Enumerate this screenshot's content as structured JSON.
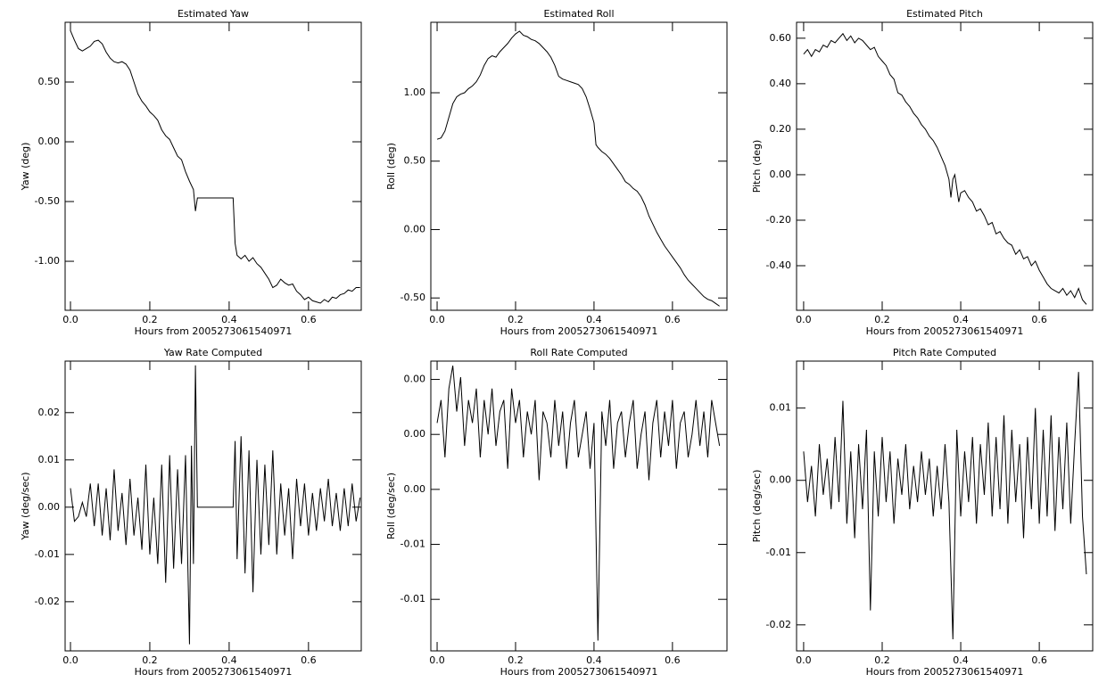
{
  "chart_data": [
    {
      "type": "line",
      "title": "Estimated Yaw",
      "x_label": "Hours from 2005273061540971",
      "y_label": "Yaw (deg)",
      "xlim": [
        -0.0135,
        0.733
      ],
      "ylim": [
        -1.41,
        1.0
      ],
      "xticks": [
        {
          "value": 0,
          "label": "0.0"
        },
        0.2,
        0.4,
        0.6
      ],
      "yticks": [
        {
          "value": 0.5,
          "label": "0.50"
        },
        {
          "value": 0,
          "label": "0.00"
        },
        {
          "value": -0.5,
          "label": "-0.50"
        },
        {
          "value": -1.0,
          "label": "-1.00"
        }
      ],
      "color": "#000000",
      "x": [
        0,
        0.01,
        0.02,
        0.03,
        0.04,
        0.05,
        0.06,
        0.07,
        0.08,
        0.09,
        0.1,
        0.11,
        0.12,
        0.13,
        0.14,
        0.15,
        0.16,
        0.17,
        0.18,
        0.19,
        0.2,
        0.21,
        0.22,
        0.23,
        0.24,
        0.25,
        0.26,
        0.27,
        0.28,
        0.29,
        0.3,
        0.31,
        0.315,
        0.32,
        0.41,
        0.415,
        0.42,
        0.43,
        0.44,
        0.45,
        0.46,
        0.47,
        0.48,
        0.49,
        0.5,
        0.51,
        0.52,
        0.53,
        0.54,
        0.55,
        0.56,
        0.57,
        0.58,
        0.59,
        0.6,
        0.61,
        0.62,
        0.63,
        0.64,
        0.65,
        0.66,
        0.67,
        0.68,
        0.69,
        0.7,
        0.71,
        0.72,
        0.73
      ],
      "values": [
        0.93,
        0.85,
        0.78,
        0.76,
        0.78,
        0.8,
        0.84,
        0.85,
        0.82,
        0.75,
        0.7,
        0.67,
        0.66,
        0.67,
        0.65,
        0.6,
        0.5,
        0.4,
        0.34,
        0.3,
        0.25,
        0.22,
        0.18,
        0.1,
        0.05,
        0.02,
        -0.05,
        -0.12,
        -0.15,
        -0.25,
        -0.33,
        -0.4,
        -0.58,
        -0.47,
        -0.47,
        -0.85,
        -0.95,
        -0.98,
        -0.95,
        -1.0,
        -0.97,
        -1.02,
        -1.05,
        -1.1,
        -1.15,
        -1.22,
        -1.2,
        -1.15,
        -1.18,
        -1.2,
        -1.19,
        -1.25,
        -1.28,
        -1.32,
        -1.3,
        -1.33,
        -1.34,
        -1.35,
        -1.32,
        -1.34,
        -1.3,
        -1.31,
        -1.28,
        -1.27,
        -1.24,
        -1.25,
        -1.22,
        -1.22
      ]
    },
    {
      "type": "line",
      "title": "Estimated Roll",
      "x_label": "Hours from 2005273061540971",
      "y_label": "Roll (deg)",
      "xlim": [
        -0.016,
        0.739
      ],
      "ylim": [
        -0.59,
        1.515
      ],
      "xticks": [
        {
          "value": 0,
          "label": "0.0"
        },
        0.2,
        0.4,
        0.6
      ],
      "yticks": [
        {
          "value": 1.0,
          "label": "1.00"
        },
        {
          "value": 0.5,
          "label": "0.50"
        },
        {
          "value": 0,
          "label": "0.00"
        },
        {
          "value": -0.5,
          "label": "-0.50"
        }
      ],
      "color": "#000000",
      "x": [
        0,
        0.01,
        0.02,
        0.03,
        0.04,
        0.05,
        0.06,
        0.07,
        0.08,
        0.09,
        0.1,
        0.11,
        0.12,
        0.13,
        0.14,
        0.15,
        0.16,
        0.17,
        0.18,
        0.19,
        0.2,
        0.21,
        0.22,
        0.23,
        0.24,
        0.25,
        0.26,
        0.27,
        0.28,
        0.29,
        0.3,
        0.31,
        0.32,
        0.33,
        0.34,
        0.35,
        0.36,
        0.37,
        0.38,
        0.39,
        0.4,
        0.405,
        0.41,
        0.42,
        0.43,
        0.44,
        0.45,
        0.46,
        0.47,
        0.48,
        0.49,
        0.5,
        0.51,
        0.52,
        0.53,
        0.54,
        0.55,
        0.56,
        0.57,
        0.58,
        0.59,
        0.6,
        0.61,
        0.62,
        0.63,
        0.64,
        0.65,
        0.66,
        0.67,
        0.68,
        0.69,
        0.7,
        0.71,
        0.72
      ],
      "values": [
        0.66,
        0.67,
        0.72,
        0.82,
        0.92,
        0.97,
        0.99,
        1.0,
        1.03,
        1.05,
        1.08,
        1.13,
        1.2,
        1.25,
        1.27,
        1.26,
        1.3,
        1.33,
        1.36,
        1.4,
        1.43,
        1.45,
        1.42,
        1.41,
        1.39,
        1.38,
        1.36,
        1.33,
        1.3,
        1.26,
        1.2,
        1.12,
        1.1,
        1.09,
        1.08,
        1.07,
        1.06,
        1.03,
        0.97,
        0.88,
        0.78,
        0.62,
        0.6,
        0.57,
        0.55,
        0.52,
        0.48,
        0.44,
        0.4,
        0.35,
        0.33,
        0.3,
        0.28,
        0.24,
        0.18,
        0.1,
        0.04,
        -0.02,
        -0.07,
        -0.12,
        -0.16,
        -0.2,
        -0.24,
        -0.28,
        -0.33,
        -0.37,
        -0.4,
        -0.43,
        -0.46,
        -0.49,
        -0.51,
        -0.52,
        -0.54,
        -0.56
      ]
    },
    {
      "type": "line",
      "title": "Estimated Pitch",
      "x_label": "Hours from 2005273061540971",
      "y_label": "Pitch (deg)",
      "xlim": [
        -0.018,
        0.736
      ],
      "ylim": [
        -0.596,
        0.67
      ],
      "xticks": [
        {
          "value": 0,
          "label": "0.0"
        },
        0.2,
        0.4,
        0.6
      ],
      "yticks": [
        {
          "value": 0.6,
          "label": "0.60"
        },
        {
          "value": 0.4,
          "label": "0.40"
        },
        {
          "value": 0.2,
          "label": "0.20"
        },
        {
          "value": 0,
          "label": "0.00"
        },
        {
          "value": -0.2,
          "label": "-0.20"
        },
        {
          "value": -0.4,
          "label": "-0.40"
        }
      ],
      "color": "#000000",
      "x": [
        0,
        0.01,
        0.02,
        0.03,
        0.04,
        0.05,
        0.06,
        0.07,
        0.08,
        0.09,
        0.1,
        0.11,
        0.12,
        0.13,
        0.14,
        0.15,
        0.16,
        0.17,
        0.18,
        0.19,
        0.2,
        0.21,
        0.22,
        0.23,
        0.24,
        0.25,
        0.26,
        0.27,
        0.28,
        0.29,
        0.3,
        0.31,
        0.32,
        0.33,
        0.34,
        0.35,
        0.36,
        0.37,
        0.375,
        0.38,
        0.385,
        0.39,
        0.395,
        0.4,
        0.41,
        0.42,
        0.43,
        0.44,
        0.45,
        0.46,
        0.47,
        0.48,
        0.49,
        0.5,
        0.51,
        0.52,
        0.53,
        0.54,
        0.55,
        0.56,
        0.57,
        0.58,
        0.59,
        0.6,
        0.61,
        0.62,
        0.63,
        0.64,
        0.65,
        0.66,
        0.67,
        0.68,
        0.69,
        0.7,
        0.71,
        0.72
      ],
      "values": [
        0.53,
        0.55,
        0.52,
        0.55,
        0.54,
        0.57,
        0.56,
        0.59,
        0.58,
        0.6,
        0.62,
        0.59,
        0.61,
        0.58,
        0.6,
        0.59,
        0.57,
        0.55,
        0.56,
        0.52,
        0.5,
        0.48,
        0.44,
        0.42,
        0.36,
        0.35,
        0.32,
        0.3,
        0.27,
        0.25,
        0.22,
        0.2,
        0.17,
        0.15,
        0.12,
        0.08,
        0.04,
        -0.02,
        -0.1,
        -0.02,
        0.0,
        -0.06,
        -0.12,
        -0.08,
        -0.07,
        -0.1,
        -0.12,
        -0.16,
        -0.15,
        -0.18,
        -0.22,
        -0.21,
        -0.26,
        -0.25,
        -0.28,
        -0.3,
        -0.31,
        -0.35,
        -0.33,
        -0.37,
        -0.36,
        -0.4,
        -0.38,
        -0.42,
        -0.45,
        -0.48,
        -0.5,
        -0.51,
        -0.52,
        -0.5,
        -0.53,
        -0.51,
        -0.54,
        -0.5,
        -0.55,
        -0.57
      ]
    },
    {
      "type": "line",
      "title": "Yaw Rate Computed",
      "x_label": "Hours from 2005273061540971",
      "y_label": "Yaw (deg/sec)",
      "xlim": [
        -0.0135,
        0.733
      ],
      "ylim": [
        -0.0304,
        0.0309
      ],
      "xticks": [
        {
          "value": 0,
          "label": "0.0"
        },
        0.2,
        0.4,
        0.6
      ],
      "yticks": [
        0.02,
        0.01,
        {
          "value": 0,
          "label": "0.00"
        },
        -0.01,
        -0.02
      ],
      "color": "#000000",
      "x": [
        0,
        0.01,
        0.02,
        0.03,
        0.04,
        0.05,
        0.06,
        0.07,
        0.08,
        0.09,
        0.1,
        0.11,
        0.12,
        0.13,
        0.14,
        0.15,
        0.16,
        0.17,
        0.18,
        0.19,
        0.2,
        0.21,
        0.22,
        0.23,
        0.24,
        0.25,
        0.26,
        0.27,
        0.28,
        0.29,
        0.3,
        0.305,
        0.31,
        0.315,
        0.32,
        0.41,
        0.415,
        0.42,
        0.43,
        0.44,
        0.45,
        0.46,
        0.47,
        0.48,
        0.49,
        0.5,
        0.51,
        0.52,
        0.53,
        0.54,
        0.55,
        0.56,
        0.57,
        0.58,
        0.59,
        0.6,
        0.61,
        0.62,
        0.63,
        0.64,
        0.65,
        0.66,
        0.67,
        0.68,
        0.69,
        0.7,
        0.71,
        0.72,
        0.73
      ],
      "values": [
        0.004,
        -0.003,
        -0.002,
        0.001,
        -0.002,
        0.005,
        -0.004,
        0.005,
        -0.006,
        0.004,
        -0.007,
        0.008,
        -0.005,
        0.003,
        -0.008,
        0.006,
        -0.006,
        0.002,
        -0.009,
        0.009,
        -0.01,
        0.002,
        -0.012,
        0.009,
        -0.016,
        0.011,
        -0.013,
        0.008,
        -0.012,
        0.011,
        -0.029,
        0.013,
        -0.012,
        0.03,
        0,
        0,
        0.014,
        -0.011,
        0.015,
        -0.014,
        0.012,
        -0.018,
        0.01,
        -0.01,
        0.009,
        -0.008,
        0.012,
        -0.01,
        0.005,
        -0.006,
        0.004,
        -0.011,
        0.006,
        -0.004,
        0.005,
        -0.006,
        0.003,
        -0.005,
        0.004,
        -0.003,
        0.006,
        -0.004,
        0.003,
        -0.005,
        0.004,
        -0.004,
        0.005,
        -0.003,
        0.002
      ]
    },
    {
      "type": "line",
      "title": "Roll Rate Computed",
      "x_label": "Hours from 2005273061540971",
      "y_label": "Roll (deg/sec)",
      "xlim": [
        -0.016,
        0.739
      ],
      "ylim": [
        -0.0189,
        0.0064
      ],
      "xticks": [
        {
          "value": 0,
          "label": "0.0"
        },
        0.2,
        0.4,
        0.6
      ],
      "yticks": [
        {
          "value": 0.0048,
          "label": "0.00"
        },
        {
          "value": 0,
          "label": "0.00"
        },
        {
          "value": -0.0048,
          "label": "0.00"
        },
        {
          "value": -0.0096,
          "label": "-0.01"
        },
        {
          "value": -0.0144,
          "label": "-0.01"
        }
      ],
      "color": "#000000",
      "x": [
        0,
        0.01,
        0.02,
        0.03,
        0.04,
        0.05,
        0.06,
        0.07,
        0.08,
        0.09,
        0.1,
        0.11,
        0.12,
        0.13,
        0.14,
        0.15,
        0.16,
        0.17,
        0.18,
        0.19,
        0.2,
        0.21,
        0.22,
        0.23,
        0.24,
        0.25,
        0.26,
        0.27,
        0.28,
        0.29,
        0.3,
        0.31,
        0.32,
        0.33,
        0.34,
        0.35,
        0.36,
        0.37,
        0.38,
        0.39,
        0.4,
        0.41,
        0.42,
        0.43,
        0.44,
        0.45,
        0.46,
        0.47,
        0.48,
        0.49,
        0.5,
        0.51,
        0.52,
        0.53,
        0.54,
        0.55,
        0.56,
        0.57,
        0.58,
        0.59,
        0.6,
        0.61,
        0.62,
        0.63,
        0.64,
        0.65,
        0.66,
        0.67,
        0.68,
        0.69,
        0.7,
        0.71,
        0.72
      ],
      "values": [
        0.001,
        0.003,
        -0.002,
        0.004,
        0.006,
        0.002,
        0.005,
        -0.001,
        0.003,
        0.001,
        0.004,
        -0.002,
        0.003,
        0.0,
        0.004,
        -0.001,
        0.002,
        0.003,
        -0.003,
        0.004,
        0.001,
        0.003,
        -0.002,
        0.002,
        0.0,
        0.003,
        -0.004,
        0.002,
        0.001,
        -0.002,
        0.003,
        -0.001,
        0.002,
        -0.003,
        0.001,
        0.003,
        -0.002,
        0.0,
        0.002,
        -0.003,
        0.001,
        -0.018,
        0.002,
        -0.001,
        0.003,
        -0.003,
        0.001,
        0.002,
        -0.002,
        0.001,
        0.003,
        -0.003,
        0.0,
        0.002,
        -0.004,
        0.001,
        0.003,
        -0.002,
        0.002,
        -0.001,
        0.003,
        -0.003,
        0.001,
        0.002,
        -0.002,
        0.0,
        0.003,
        -0.001,
        0.002,
        -0.002,
        0.003,
        0.001,
        -0.001
      ]
    },
    {
      "type": "line",
      "title": "Pitch Rate Computed",
      "x_label": "Hours from 2005273061540971",
      "y_label": "Pitch (deg/sec)",
      "xlim": [
        -0.018,
        0.736
      ],
      "ylim": [
        -0.0236,
        0.0165
      ],
      "xticks": [
        {
          "value": 0,
          "label": "0.0"
        },
        0.2,
        0.4,
        0.6
      ],
      "yticks": [
        0.01,
        {
          "value": 0,
          "label": "0.00"
        },
        -0.01,
        -0.02
      ],
      "color": "#000000",
      "x": [
        0,
        0.01,
        0.02,
        0.03,
        0.04,
        0.05,
        0.06,
        0.07,
        0.08,
        0.09,
        0.1,
        0.11,
        0.12,
        0.13,
        0.14,
        0.15,
        0.16,
        0.17,
        0.18,
        0.19,
        0.2,
        0.21,
        0.22,
        0.23,
        0.24,
        0.25,
        0.26,
        0.27,
        0.28,
        0.29,
        0.3,
        0.31,
        0.32,
        0.33,
        0.34,
        0.35,
        0.36,
        0.37,
        0.38,
        0.39,
        0.4,
        0.41,
        0.42,
        0.43,
        0.44,
        0.45,
        0.46,
        0.47,
        0.48,
        0.49,
        0.5,
        0.51,
        0.52,
        0.53,
        0.54,
        0.55,
        0.56,
        0.57,
        0.58,
        0.59,
        0.6,
        0.61,
        0.62,
        0.63,
        0.64,
        0.65,
        0.66,
        0.67,
        0.68,
        0.69,
        0.7,
        0.71,
        0.72
      ],
      "values": [
        0.004,
        -0.003,
        0.002,
        -0.005,
        0.005,
        -0.002,
        0.003,
        -0.004,
        0.006,
        -0.003,
        0.011,
        -0.006,
        0.004,
        -0.008,
        0.005,
        -0.004,
        0.007,
        -0.018,
        0.004,
        -0.005,
        0.006,
        -0.003,
        0.004,
        -0.006,
        0.003,
        -0.002,
        0.005,
        -0.004,
        0.002,
        -0.003,
        0.004,
        -0.002,
        0.003,
        -0.005,
        0.002,
        -0.004,
        0.005,
        -0.003,
        -0.022,
        0.007,
        -0.005,
        0.004,
        -0.003,
        0.006,
        -0.006,
        0.005,
        -0.002,
        0.008,
        -0.005,
        0.006,
        -0.004,
        0.009,
        -0.006,
        0.007,
        -0.003,
        0.005,
        -0.008,
        0.006,
        -0.004,
        0.01,
        -0.006,
        0.007,
        -0.005,
        0.009,
        -0.007,
        0.006,
        -0.004,
        0.008,
        -0.006,
        0.005,
        0.015,
        -0.005,
        -0.013
      ]
    }
  ]
}
